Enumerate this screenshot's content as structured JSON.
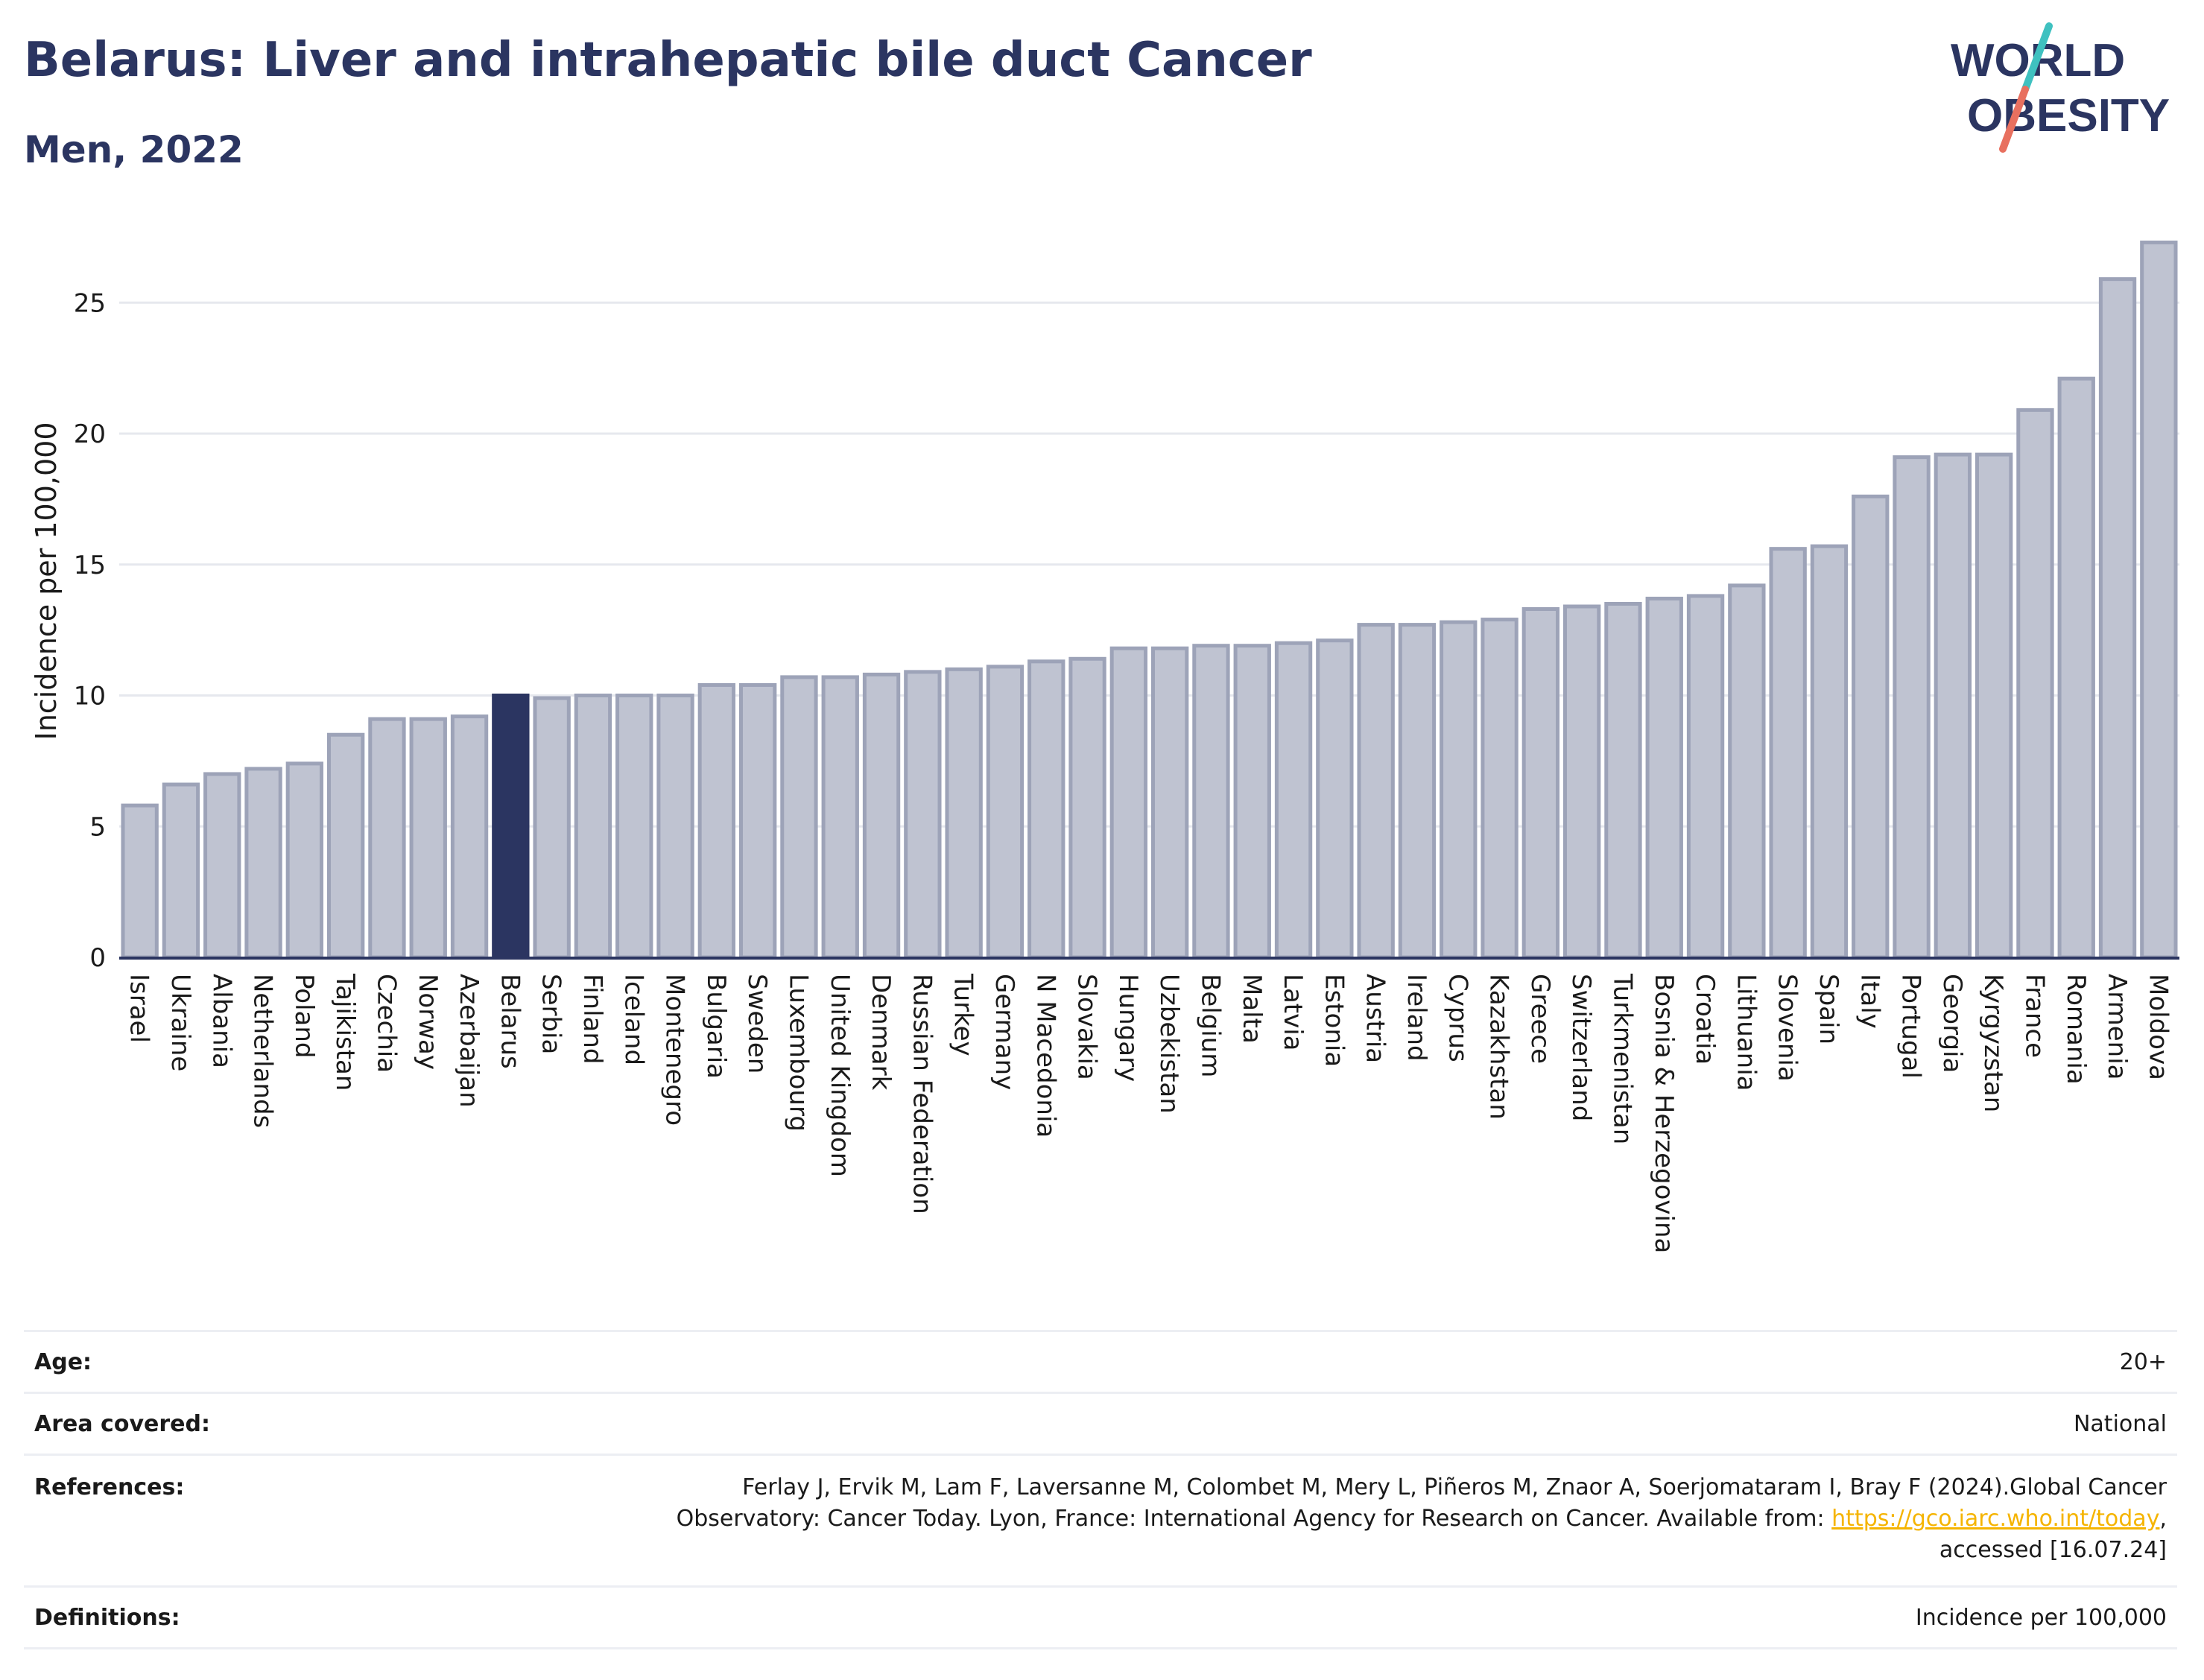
{
  "header": {
    "title": "Belarus: Liver and intrahepatic bile duct Cancer",
    "subtitle": "Men, 2022"
  },
  "logo": {
    "line1": "WORLD",
    "line2": "OBESITY",
    "text_color": "#2b3561",
    "slash_colors": [
      "#3fc1c0",
      "#e8705f"
    ]
  },
  "chart_data": {
    "type": "bar",
    "ylabel": "Incidence per 100,000",
    "xlabel": "",
    "ylim": [
      0,
      28
    ],
    "yticks": [
      0,
      5,
      10,
      15,
      20,
      25
    ],
    "grid": true,
    "highlight": "Belarus",
    "bar_color": "#bfc3d1",
    "bar_edge_color": "#9da3b8",
    "highlight_color": "#2b3561",
    "categories": [
      "Israel",
      "Ukraine",
      "Albania",
      "Netherlands",
      "Poland",
      "Tajikistan",
      "Czechia",
      "Norway",
      "Azerbaijan",
      "Belarus",
      "Serbia",
      "Finland",
      "Iceland",
      "Montenegro",
      "Bulgaria",
      "Sweden",
      "Luxembourg",
      "United Kingdom",
      "Denmark",
      "Russian Federation",
      "Turkey",
      "Germany",
      "N Macedonia",
      "Slovakia",
      "Hungary",
      "Uzbekistan",
      "Belgium",
      "Malta",
      "Latvia",
      "Estonia",
      "Austria",
      "Ireland",
      "Cyprus",
      "Kazakhstan",
      "Greece",
      "Switzerland",
      "Turkmenistan",
      "Bosnia & Herzegovina",
      "Croatia",
      "Lithuania",
      "Slovenia",
      "Spain",
      "Italy",
      "Portugal",
      "Georgia",
      "Kyrgyzstan",
      "France",
      "Romania",
      "Armenia",
      "Moldova"
    ],
    "values": [
      5.8,
      6.6,
      7.0,
      7.2,
      7.4,
      8.5,
      9.1,
      9.1,
      9.2,
      10.0,
      9.9,
      10.0,
      10.0,
      10.0,
      10.4,
      10.4,
      10.7,
      10.7,
      10.8,
      10.9,
      11.0,
      11.1,
      11.3,
      11.4,
      11.8,
      11.8,
      11.9,
      11.9,
      12.0,
      12.1,
      12.7,
      12.7,
      12.8,
      12.9,
      13.3,
      13.4,
      13.5,
      13.7,
      13.8,
      14.2,
      15.6,
      15.7,
      17.6,
      19.1,
      19.2,
      19.2,
      20.9,
      22.1,
      25.9,
      27.3
    ]
  },
  "meta": {
    "age_label": "Age:",
    "age_value": "20+",
    "area_label": "Area covered:",
    "area_value": "National",
    "references_label": "References:",
    "references_text_1": "Ferlay J, Ervik M, Lam F, Laversanne M, Colombet M, Mery L, Piñeros M, Znaor A, Soerjomataram I, Bray F (2024).Global Cancer",
    "references_text_2": "Observatory: Cancer Today. Lyon, France: International Agency for Research on Cancer. Available from: ",
    "references_link": "https://gco.iarc.who.int/today",
    "references_text_3": ",",
    "references_text_4": "accessed [16.07.24]",
    "definitions_label": "Definitions:",
    "definitions_value": "Incidence per 100,000"
  }
}
